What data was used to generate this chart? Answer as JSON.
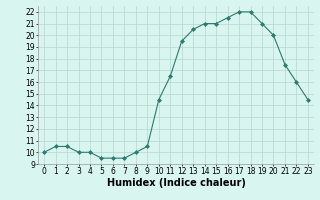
{
  "x": [
    0,
    1,
    2,
    3,
    4,
    5,
    6,
    7,
    8,
    9,
    10,
    11,
    12,
    13,
    14,
    15,
    16,
    17,
    18,
    19,
    20,
    21,
    22,
    23
  ],
  "y": [
    10,
    10.5,
    10.5,
    10,
    10,
    9.5,
    9.5,
    9.5,
    10,
    10.5,
    14.5,
    16.5,
    19.5,
    20.5,
    21,
    21,
    21.5,
    22,
    22,
    21,
    20,
    17.5,
    16,
    14.5
  ],
  "line_color": "#2d7a6e",
  "marker": "D",
  "marker_size": 2.0,
  "bg_color": "#d8f5f0",
  "grid_color": "#b8d5cf",
  "xlabel": "Humidex (Indice chaleur)",
  "xlim": [
    -0.5,
    23.5
  ],
  "ylim": [
    9,
    22.5
  ],
  "yticks": [
    9,
    10,
    11,
    12,
    13,
    14,
    15,
    16,
    17,
    18,
    19,
    20,
    21,
    22
  ],
  "xticks": [
    0,
    1,
    2,
    3,
    4,
    5,
    6,
    7,
    8,
    9,
    10,
    11,
    12,
    13,
    14,
    15,
    16,
    17,
    18,
    19,
    20,
    21,
    22,
    23
  ],
  "tick_fontsize": 5.5,
  "xlabel_fontsize": 7.0,
  "linewidth": 0.8
}
